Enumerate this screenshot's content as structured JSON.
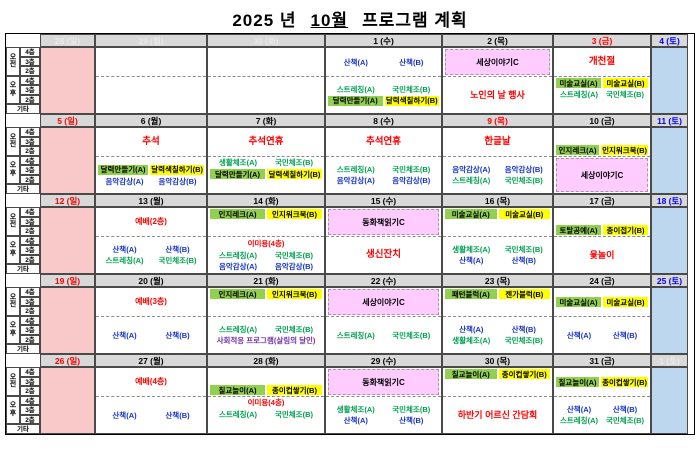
{
  "title": {
    "year": "2025 년",
    "month": "10월",
    "rest": "프로그램 계획"
  },
  "row_labels": {
    "am": "오전",
    "pm": "오후",
    "etc": "기타",
    "floors": [
      "4층",
      "3층",
      "2층"
    ]
  },
  "colors": {
    "header_bg": "#D9D9D9",
    "sunday_bg": "#F9C9C9",
    "saturday_bg": "#BDD7EE",
    "banner_bg": "#FFCCFF",
    "hl_green": "#92D050",
    "hl_yellow": "#FFFF00",
    "blue": "#1532C8",
    "green": "#00A050",
    "red": "#FF0000",
    "purple": "#7030A0",
    "black": "#000000"
  },
  "weeks": [
    {
      "days": [
        {
          "h": "28 (일)",
          "hs": "f",
          "bg": "p"
        },
        {
          "h": "29 (월)",
          "hs": "f",
          "bg": "w"
        },
        {
          "h": "30 (화)",
          "hs": "f",
          "bg": "w"
        },
        {
          "h": "1 (수)",
          "hs": "k",
          "bg": "w",
          "am": {
            "al": "c",
            "lines": [
              {
                "k": "pair",
                "a": "산책(A)",
                "b": "산책(B)",
                "c": "blue"
              }
            ]
          },
          "pm": {
            "al": "c",
            "lines": [
              {
                "k": "pair",
                "a": "스트레칭(A)",
                "b": "국민체조(B)",
                "c": "green"
              },
              {
                "k": "pairhl",
                "a": "달력만들기(A)",
                "b": "달력색칠하기(B)"
              }
            ]
          }
        },
        {
          "h": "2 (목)",
          "hs": "k",
          "bg": "w",
          "am": {
            "al": "c",
            "lines": [
              {
                "k": "banner",
                "t": "세상이야기C"
              }
            ]
          },
          "pm": {
            "al": "c",
            "lines": [
              {
                "k": "txt",
                "t": "노인의 날 행사",
                "c": "red",
                "fs": 9
              }
            ]
          }
        },
        {
          "h": "3 (금)",
          "hs": "r",
          "bg": "w",
          "am": {
            "al": "c",
            "lines": [
              {
                "k": "txt",
                "t": "개천절",
                "c": "red",
                "fs": 9.5
              }
            ]
          },
          "pm": {
            "al": "t",
            "lines": [
              {
                "k": "pairhl",
                "a": "미술교실(A)",
                "b": "미술교실(B)"
              },
              {
                "k": "pair",
                "a": "스트레칭(A)",
                "b": "국민체조(B)",
                "c": "green"
              }
            ]
          }
        },
        {
          "h": "4 (토)",
          "hs": "b",
          "bg": "s"
        }
      ]
    },
    {
      "days": [
        {
          "h": "5 (일)",
          "hs": "r",
          "bg": "p"
        },
        {
          "h": "6 (월)",
          "hs": "k",
          "bg": "w",
          "am": {
            "al": "c",
            "lines": [
              {
                "k": "txt",
                "t": "추석",
                "c": "red",
                "fs": 9.5
              }
            ]
          },
          "pm": {
            "al": "c",
            "lines": [
              {
                "k": "pairhl",
                "a": "달력만들기(A)",
                "b": "달력색칠하기(B)"
              },
              {
                "k": "pair",
                "a": "음악감상(A)",
                "b": "음악감상(B)",
                "c": "blue"
              }
            ]
          }
        },
        {
          "h": "7 (화)",
          "hs": "k",
          "bg": "w",
          "am": {
            "al": "c",
            "lines": [
              {
                "k": "txt",
                "t": "추석연휴",
                "c": "red",
                "fs": 9.5
              }
            ]
          },
          "pm": {
            "al": "t",
            "lines": [
              {
                "k": "pair",
                "a": "생활체조(A)",
                "b": "국민체조(B)",
                "c": "green"
              },
              {
                "k": "pairhl",
                "a": "달력만들기(A)",
                "b": "달력색칠하기(B)"
              }
            ]
          }
        },
        {
          "h": "8 (수)",
          "hs": "k",
          "bg": "w",
          "am": {
            "al": "c",
            "lines": [
              {
                "k": "txt",
                "t": "추석연휴",
                "c": "red",
                "fs": 9.5
              }
            ]
          },
          "pm": {
            "al": "c",
            "lines": [
              {
                "k": "pair",
                "a": "스트레칭(A)",
                "b": "국민체조(B)",
                "c": "green"
              },
              {
                "k": "pair",
                "a": "음악감상(A)",
                "b": "음악감상(B)",
                "c": "blue"
              }
            ]
          }
        },
        {
          "h": "9 (목)",
          "hs": "r",
          "bg": "w",
          "am": {
            "al": "c",
            "lines": [
              {
                "k": "txt",
                "t": "한글날",
                "c": "red",
                "fs": 9.5
              }
            ]
          },
          "pm": {
            "al": "c",
            "lines": [
              {
                "k": "pair",
                "a": "음악감상(A)",
                "b": "음악감상(B)",
                "c": "blue"
              },
              {
                "k": "pair",
                "a": "스트레칭(A)",
                "b": "국민체조(B)",
                "c": "green"
              }
            ]
          }
        },
        {
          "h": "10 (금)",
          "hs": "k",
          "bg": "w",
          "am": {
            "al": "b",
            "lines": [
              {
                "k": "pairhl",
                "a": "인지레크(A)",
                "b": "인지워크북(B)"
              }
            ]
          },
          "pm": {
            "al": "c",
            "lines": [
              {
                "k": "banner",
                "t": "세상이야기C"
              }
            ]
          }
        },
        {
          "h": "11 (토)",
          "hs": "b",
          "bg": "s"
        }
      ]
    },
    {
      "days": [
        {
          "h": "12 (일)",
          "hs": "r",
          "bg": "p"
        },
        {
          "h": "13 (월)",
          "hs": "k",
          "bg": "w",
          "am": {
            "al": "c",
            "lines": [
              {
                "k": "txt",
                "t": "예배(2층)",
                "c": "red",
                "fs": 8
              }
            ]
          },
          "pm": {
            "al": "c",
            "lines": [
              {
                "k": "pair",
                "a": "산책(A)",
                "b": "산책(B)",
                "c": "blue"
              },
              {
                "k": "pair",
                "a": "스트레칭(A)",
                "b": "국민체조(B)",
                "c": "green"
              }
            ]
          }
        },
        {
          "h": "14 (화)",
          "hs": "k",
          "bg": "w",
          "am": {
            "al": "t",
            "lines": [
              {
                "k": "pairhl",
                "a": "인지레크(A)",
                "b": "인지워크북(B)"
              }
            ]
          },
          "pm": {
            "al": "c",
            "lines": [
              {
                "k": "txt",
                "t": "이미용(4층)",
                "c": "red",
                "fs": 7.5
              },
              {
                "k": "pair",
                "a": "스트레칭(A)",
                "b": "국민체조(B)",
                "c": "green"
              },
              {
                "k": "pair",
                "a": "음악감상(A)",
                "b": "음악감상(B)",
                "c": "blue"
              }
            ]
          }
        },
        {
          "h": "15 (수)",
          "hs": "k",
          "bg": "w",
          "am": {
            "al": "c",
            "lines": [
              {
                "k": "banner",
                "t": "동화책읽기C"
              }
            ]
          },
          "pm": {
            "al": "c",
            "lines": [
              {
                "k": "txt",
                "t": "생신잔치",
                "c": "red",
                "fs": 9.5
              }
            ]
          }
        },
        {
          "h": "16 (목)",
          "hs": "k",
          "bg": "w",
          "am": {
            "al": "t",
            "lines": [
              {
                "k": "pairhl",
                "a": "미술교실(A)",
                "b": "미술교실(B)"
              }
            ]
          },
          "pm": {
            "al": "c",
            "lines": [
              {
                "k": "pair",
                "a": "생활체조(A)",
                "b": "국민체조(B)",
                "c": "green"
              },
              {
                "k": "pair",
                "a": "산책(A)",
                "b": "산책(B)",
                "c": "blue"
              }
            ]
          }
        },
        {
          "h": "17 (금)",
          "hs": "k",
          "bg": "w",
          "am": {
            "al": "b",
            "lines": [
              {
                "k": "pairhl",
                "a": "토탈공예(A)",
                "b": "종이접기(B)"
              }
            ]
          },
          "pm": {
            "al": "c",
            "lines": [
              {
                "k": "txt",
                "t": "윷놀이",
                "c": "red",
                "fs": 9
              }
            ]
          }
        },
        {
          "h": "18 (토)",
          "hs": "b",
          "bg": "s"
        }
      ]
    },
    {
      "days": [
        {
          "h": "19 (일)",
          "hs": "r",
          "bg": "p"
        },
        {
          "h": "20 (월)",
          "hs": "k",
          "bg": "w",
          "am": {
            "al": "c",
            "lines": [
              {
                "k": "txt",
                "t": "예배(3층)",
                "c": "red",
                "fs": 8
              }
            ]
          },
          "pm": {
            "al": "c",
            "lines": [
              {
                "k": "pair",
                "a": "산책(A)",
                "b": "산책(B)",
                "c": "blue"
              }
            ]
          }
        },
        {
          "h": "21 (화)",
          "hs": "k",
          "bg": "w",
          "am": {
            "al": "t",
            "lines": [
              {
                "k": "pairhl",
                "a": "인지레크(A)",
                "b": "인지워크북(B)"
              }
            ]
          },
          "pm": {
            "al": "c",
            "lines": [
              {
                "k": "pair",
                "a": "스트레칭(A)",
                "b": "국민체조(B)",
                "c": "green"
              },
              {
                "k": "txt",
                "t": "사회적응 프로그램(살림의 달인)",
                "c": "purple",
                "fs": 7.5
              }
            ]
          }
        },
        {
          "h": "22 (수)",
          "hs": "k",
          "bg": "w",
          "am": {
            "al": "c",
            "lines": [
              {
                "k": "banner",
                "t": "세상이야기C"
              }
            ]
          },
          "pm": {
            "al": "c",
            "lines": [
              {
                "k": "pair",
                "a": "스트레칭(A)",
                "b": "국민체조(B)",
                "c": "green"
              }
            ]
          }
        },
        {
          "h": "23 (목)",
          "hs": "k",
          "bg": "w",
          "am": {
            "al": "t",
            "lines": [
              {
                "k": "pairhl",
                "a": "패턴블럭(A)",
                "b": "젠가블럭(B)"
              }
            ]
          },
          "pm": {
            "al": "c",
            "lines": [
              {
                "k": "pair",
                "a": "산책(A)",
                "b": "산책(B)",
                "c": "blue"
              },
              {
                "k": "pair",
                "a": "생활체조(A)",
                "b": "국민체조(B)",
                "c": "green"
              }
            ]
          }
        },
        {
          "h": "24 (금)",
          "hs": "k",
          "bg": "w",
          "am": {
            "al": "c",
            "lines": [
              {
                "k": "pairhl",
                "a": "미술교실(A)",
                "b": "미술교실(B)"
              }
            ]
          },
          "pm": {
            "al": "c",
            "lines": [
              {
                "k": "pair",
                "a": "산책(A)",
                "b": "산책(B)",
                "c": "blue"
              }
            ]
          }
        },
        {
          "h": "25 (토)",
          "hs": "b",
          "bg": "s"
        }
      ]
    },
    {
      "days": [
        {
          "h": "26 (일)",
          "hs": "r",
          "bg": "p"
        },
        {
          "h": "27 (월)",
          "hs": "k",
          "bg": "w",
          "am": {
            "al": "c",
            "lines": [
              {
                "k": "txt",
                "t": "예배(4층)",
                "c": "red",
                "fs": 8
              }
            ]
          },
          "pm": {
            "al": "c",
            "lines": [
              {
                "k": "pair",
                "a": "산책(A)",
                "b": "산책(B)",
                "c": "blue"
              }
            ]
          }
        },
        {
          "h": "28 (화)",
          "hs": "k",
          "bg": "w",
          "am": {
            "al": "b",
            "lines": [
              {
                "k": "pairhl",
                "a": "칠교놀이(A)",
                "b": "종이컵쌓기(B)"
              }
            ]
          },
          "pm": {
            "al": "t",
            "lines": [
              {
                "k": "txt",
                "t": "이미용(4층)",
                "c": "red",
                "fs": 7.5
              },
              {
                "k": "pair",
                "a": "스트레칭(A)",
                "b": "국민체조(B)",
                "c": "green"
              }
            ]
          }
        },
        {
          "h": "29 (수)",
          "hs": "k",
          "bg": "w",
          "am": {
            "al": "c",
            "lines": [
              {
                "k": "banner",
                "t": "동화책읽기C"
              }
            ]
          },
          "pm": {
            "al": "c",
            "lines": [
              {
                "k": "pair",
                "a": "생활체조(A)",
                "b": "국민체조(B)",
                "c": "green"
              },
              {
                "k": "pair",
                "a": "산책(A)",
                "b": "산책(B)",
                "c": "blue"
              }
            ]
          }
        },
        {
          "h": "30 (목)",
          "hs": "k",
          "bg": "w",
          "am": {
            "al": "t",
            "lines": [
              {
                "k": "pairhl",
                "a": "칠교놀이(A)",
                "b": "종이컵쌓기(B)"
              }
            ]
          },
          "pm": {
            "al": "c",
            "lines": [
              {
                "k": "txt",
                "t": "하반기 어르신 간담회",
                "c": "red",
                "fs": 9
              }
            ]
          }
        },
        {
          "h": "31 (금)",
          "hs": "k",
          "bg": "w",
          "am": {
            "al": "c",
            "lines": [
              {
                "k": "pairhl",
                "a": "칠교놀이(A)",
                "b": "종이컵쌓기(B)"
              }
            ]
          },
          "pm": {
            "al": "c",
            "lines": [
              {
                "k": "pair",
                "a": "산책(A)",
                "b": "산책(B)",
                "c": "blue"
              },
              {
                "k": "pair",
                "a": "스트레칭(A)",
                "b": "국민체조(B)",
                "c": "green"
              }
            ]
          }
        },
        {
          "h": "1 (토)",
          "hs": "f",
          "bg": "s"
        }
      ]
    }
  ]
}
